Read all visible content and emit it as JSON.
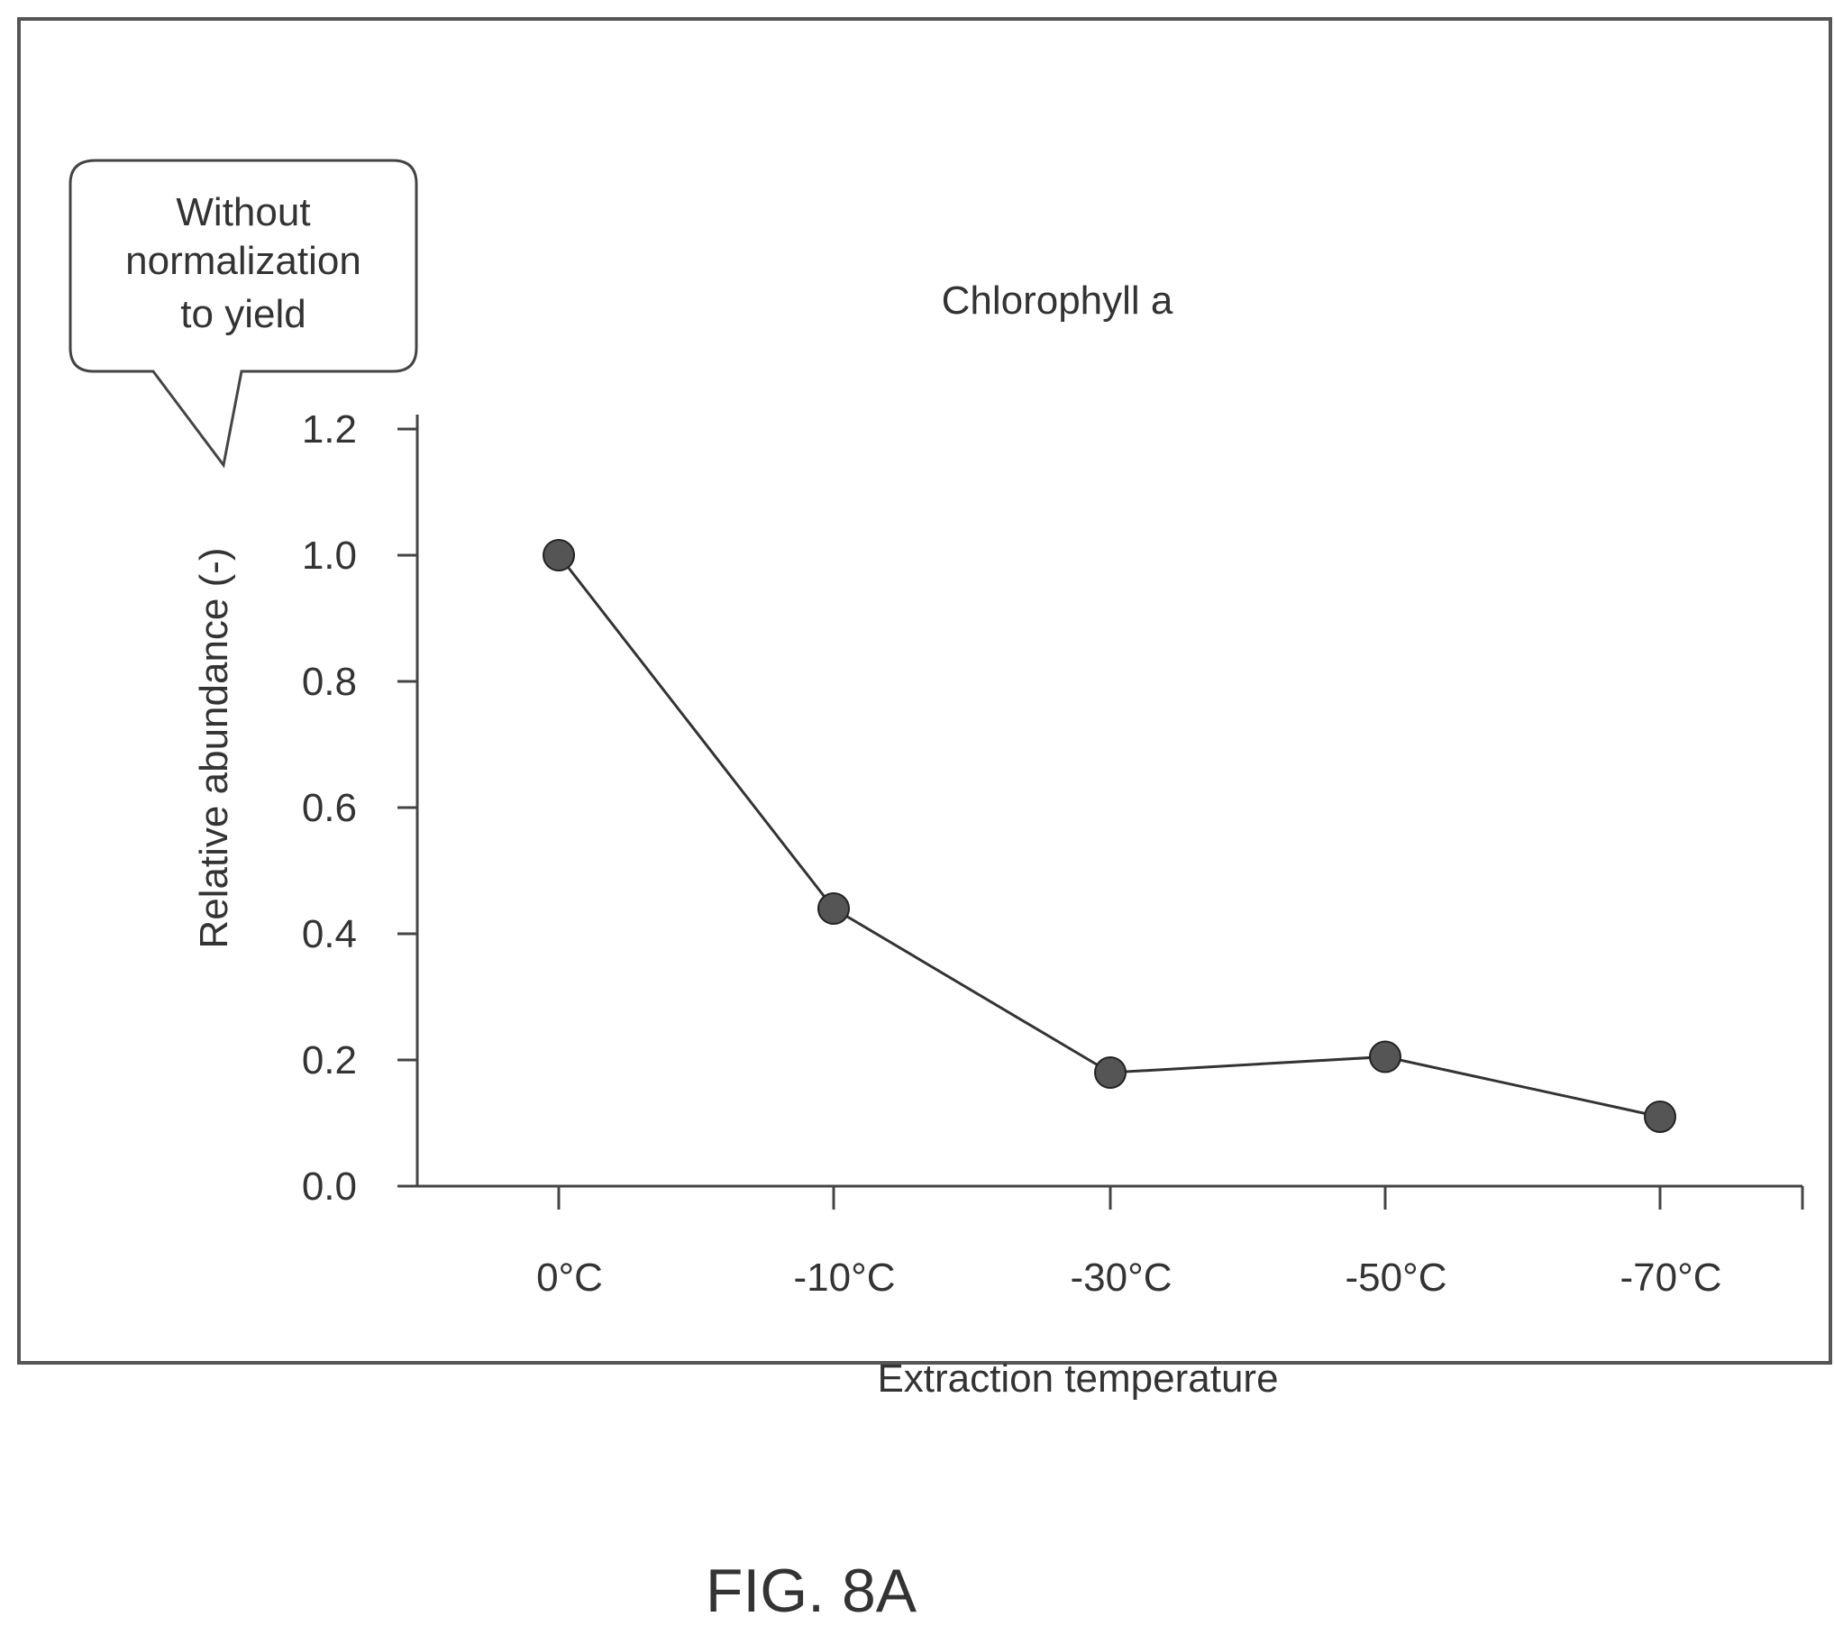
{
  "callout": {
    "lines": [
      "Without",
      "normalization",
      "to yield"
    ]
  },
  "figure_label": "FIG. 8A",
  "chart_data": {
    "type": "line",
    "title": "Chlorophyll a",
    "xlabel": "Extraction temperature",
    "ylabel": "Relative abundance (-)",
    "categories": [
      "0°C",
      "-10°C",
      "-30°C",
      "-50°C",
      "-70°C"
    ],
    "series": [
      {
        "values": [
          1.0,
          0.44,
          0.18,
          0.205,
          0.11
        ]
      }
    ],
    "ylim": [
      0,
      1.2
    ],
    "yticks": [
      "0.0",
      "0.2",
      "0.4",
      "0.6",
      "0.8",
      "1.0",
      "1.2"
    ],
    "grid": false,
    "legend": "none",
    "colors": {
      "line": "#333333",
      "marker": "#555555",
      "frame": "#555555"
    }
  }
}
